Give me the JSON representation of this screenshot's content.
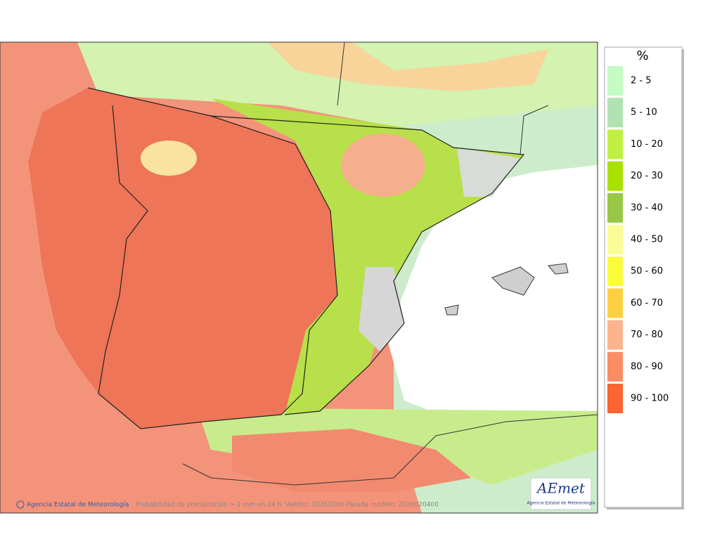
{
  "legend": {
    "title": "%",
    "items": [
      {
        "label": "2 - 5",
        "color": "#c4fbc4"
      },
      {
        "label": "5 - 10",
        "color": "#b2e2b2"
      },
      {
        "label": "10 - 20",
        "color": "#c0f040"
      },
      {
        "label": "20 - 30",
        "color": "#a8e000"
      },
      {
        "label": "30 - 40",
        "color": "#96c846"
      },
      {
        "label": "40 - 50",
        "color": "#fcfc96"
      },
      {
        "label": "50 - 60",
        "color": "#fcfc3c"
      },
      {
        "label": "60 - 70",
        "color": "#fcd040"
      },
      {
        "label": "70 - 80",
        "color": "#fcb48c"
      },
      {
        "label": "80 - 90",
        "color": "#fc8c64"
      },
      {
        "label": "90 - 100",
        "color": "#fc6432"
      }
    ]
  },
  "footer": {
    "credit": "Agencia Estatal de Meteorología",
    "caption": "Probabilidad de precipitación > 2 mm en 24 h. Validez: 20260206 Pasada modelo: 2026020400"
  },
  "logo": {
    "name": "AEmet",
    "subtitle": "Agencia Estatal de Meteorología"
  }
}
